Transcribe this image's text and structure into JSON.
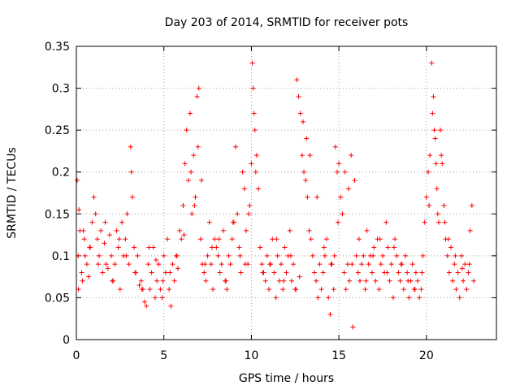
{
  "chart_data": {
    "type": "scatter",
    "title": "Day 203 of 2014, SRMTID for receiver pots",
    "xlabel": "GPS time / hours",
    "ylabel": "SRMTID / TECUs",
    "xlim": [
      0,
      24
    ],
    "ylim": [
      0,
      0.35
    ],
    "xticks": [
      0,
      5,
      10,
      15,
      20
    ],
    "yticks": [
      0,
      0.05,
      0.1,
      0.15,
      0.2,
      0.25,
      0.3,
      0.35
    ],
    "xtick_labels": [
      "0",
      "5",
      "10",
      "15",
      "20"
    ],
    "ytick_labels": [
      "0",
      "0.05",
      "0.1",
      "0.15",
      "0.2",
      "0.25",
      "0.3",
      "0.35"
    ],
    "grid": true,
    "marker": "+",
    "color": "#ff0000",
    "series": [
      {
        "name": "SRMTID",
        "x": [
          0.05,
          0.1,
          0.15,
          0.2,
          0.3,
          0.35,
          0.45,
          0.5,
          0.6,
          0.7,
          0.8,
          0.9,
          1.0,
          1.1,
          1.2,
          1.3,
          1.4,
          1.5,
          1.6,
          1.7,
          1.8,
          1.9,
          2.0,
          2.1,
          2.2,
          2.3,
          2.4,
          2.5,
          2.6,
          2.7,
          2.8,
          2.9,
          3.0,
          3.1,
          3.15,
          3.2,
          3.3,
          3.4,
          3.5,
          3.6,
          3.7,
          3.8,
          3.9,
          4.0,
          4.1,
          4.2,
          4.3,
          4.4,
          4.5,
          4.6,
          4.7,
          4.8,
          4.9,
          5.0,
          5.1,
          5.2,
          5.3,
          5.4,
          5.5,
          5.6,
          5.7,
          5.8,
          5.9,
          6.0,
          6.1,
          6.2,
          6.3,
          6.4,
          6.5,
          6.6,
          6.7,
          6.8,
          6.9,
          7.0,
          7.1,
          7.2,
          7.3,
          7.4,
          7.5,
          7.6,
          7.7,
          7.8,
          7.9,
          8.0,
          8.1,
          8.2,
          8.3,
          8.4,
          8.5,
          8.6,
          8.7,
          8.8,
          8.9,
          9.0,
          9.1,
          9.2,
          9.3,
          9.4,
          9.5,
          9.6,
          9.7,
          9.8,
          9.9,
          10.0,
          10.05,
          10.1,
          10.15,
          10.2,
          10.3,
          10.4,
          10.5,
          10.6,
          10.7,
          10.8,
          10.9,
          11.0,
          11.1,
          11.2,
          11.3,
          11.4,
          11.5,
          11.6,
          11.7,
          11.8,
          11.9,
          12.0,
          12.1,
          12.2,
          12.3,
          12.4,
          12.5,
          12.6,
          12.7,
          12.8,
          12.9,
          13.0,
          13.1,
          13.2,
          13.3,
          13.4,
          13.5,
          13.6,
          13.7,
          13.8,
          13.9,
          14.0,
          14.1,
          14.2,
          14.3,
          14.4,
          14.5,
          14.6,
          14.7,
          14.8,
          14.9,
          15.0,
          15.1,
          15.2,
          15.3,
          15.4,
          15.5,
          15.6,
          15.7,
          15.8,
          15.9,
          16.0,
          16.1,
          16.2,
          16.3,
          16.4,
          16.5,
          16.6,
          16.7,
          16.8,
          16.9,
          17.0,
          17.1,
          17.2,
          17.3,
          17.4,
          17.5,
          17.6,
          17.7,
          17.8,
          17.9,
          18.0,
          18.1,
          18.2,
          18.3,
          18.4,
          18.5,
          18.6,
          18.7,
          18.8,
          18.9,
          19.0,
          19.1,
          19.2,
          19.3,
          19.4,
          19.5,
          19.6,
          19.7,
          19.8,
          19.9,
          20.0,
          20.1,
          20.2,
          20.3,
          20.4,
          20.45,
          20.5,
          20.55,
          20.6,
          20.7,
          20.8,
          20.9,
          21.0,
          21.1,
          21.2,
          21.3,
          21.4,
          21.5,
          21.6,
          21.7,
          21.8,
          21.9,
          22.0,
          22.1,
          22.2,
          22.3,
          22.4,
          22.5,
          22.6,
          22.7,
          0.12,
          0.4,
          0.75,
          1.25,
          1.65,
          2.05,
          2.45,
          2.85,
          3.35,
          3.75,
          4.15,
          4.55,
          4.95,
          5.35,
          5.75,
          6.15,
          6.55,
          6.75,
          6.95,
          7.15,
          7.35,
          7.75,
          8.15,
          8.55,
          8.95,
          9.35,
          9.65,
          9.85,
          10.25,
          10.65,
          11.05,
          11.45,
          11.85,
          12.25,
          12.55,
          12.75,
          12.95,
          13.15,
          13.35,
          13.75,
          14.15,
          14.55,
          14.75,
          14.95,
          15.35,
          15.55,
          15.75,
          16.15,
          16.55,
          16.95,
          17.35,
          17.75,
          18.15,
          18.55,
          18.95,
          19.35,
          19.75,
          20.15,
          20.35,
          20.65,
          20.85,
          21.05,
          21.25,
          21.65,
          22.05,
          22.45
        ],
        "y": [
          0.19,
          0.1,
          0.155,
          0.13,
          0.08,
          0.07,
          0.12,
          0.1,
          0.09,
          0.075,
          0.11,
          0.14,
          0.17,
          0.15,
          0.12,
          0.1,
          0.13,
          0.08,
          0.115,
          0.09,
          0.085,
          0.125,
          0.1,
          0.07,
          0.09,
          0.13,
          0.11,
          0.06,
          0.14,
          0.1,
          0.12,
          0.15,
          0.09,
          0.23,
          0.2,
          0.17,
          0.11,
          0.08,
          0.1,
          0.065,
          0.07,
          0.06,
          0.045,
          0.04,
          0.09,
          0.06,
          0.08,
          0.11,
          0.05,
          0.07,
          0.09,
          0.06,
          0.05,
          0.1,
          0.08,
          0.12,
          0.06,
          0.04,
          0.09,
          0.07,
          0.1,
          0.085,
          0.13,
          0.12,
          0.16,
          0.21,
          0.25,
          0.19,
          0.27,
          0.15,
          0.22,
          0.17,
          0.29,
          0.3,
          0.12,
          0.09,
          0.08,
          0.07,
          0.1,
          0.14,
          0.09,
          0.06,
          0.12,
          0.11,
          0.1,
          0.08,
          0.09,
          0.13,
          0.07,
          0.06,
          0.1,
          0.09,
          0.12,
          0.14,
          0.23,
          0.15,
          0.11,
          0.08,
          0.2,
          0.18,
          0.13,
          0.09,
          0.16,
          0.21,
          0.33,
          0.3,
          0.27,
          0.25,
          0.22,
          0.18,
          0.11,
          0.09,
          0.08,
          0.07,
          0.1,
          0.06,
          0.09,
          0.12,
          0.08,
          0.05,
          0.1,
          0.07,
          0.09,
          0.06,
          0.11,
          0.08,
          0.1,
          0.13,
          0.07,
          0.09,
          0.06,
          0.31,
          0.29,
          0.27,
          0.22,
          0.2,
          0.19,
          0.17,
          0.13,
          0.12,
          0.1,
          0.08,
          0.07,
          0.05,
          0.09,
          0.06,
          0.08,
          0.1,
          0.12,
          0.05,
          0.03,
          0.09,
          0.06,
          0.23,
          0.2,
          0.21,
          0.17,
          0.15,
          0.08,
          0.06,
          0.09,
          0.07,
          0.22,
          0.015,
          0.19,
          0.1,
          0.08,
          0.07,
          0.09,
          0.1,
          0.06,
          0.13,
          0.09,
          0.1,
          0.08,
          0.11,
          0.07,
          0.12,
          0.06,
          0.09,
          0.1,
          0.08,
          0.14,
          0.11,
          0.07,
          0.09,
          0.05,
          0.12,
          0.1,
          0.08,
          0.07,
          0.09,
          0.06,
          0.1,
          0.08,
          0.05,
          0.07,
          0.09,
          0.06,
          0.08,
          0.07,
          0.05,
          0.06,
          0.1,
          0.14,
          0.17,
          0.2,
          0.22,
          0.33,
          0.29,
          0.25,
          0.24,
          0.21,
          0.18,
          0.14,
          0.25,
          0.21,
          0.16,
          0.12,
          0.1,
          0.08,
          0.11,
          0.07,
          0.09,
          0.06,
          0.08,
          0.05,
          0.1,
          0.07,
          0.09,
          0.06,
          0.08,
          0.13,
          0.16,
          0.07,
          0.06,
          0.13,
          0.11,
          0.09,
          0.14,
          0.07,
          0.12,
          0.1,
          0.08,
          0.06,
          0.11,
          0.095,
          0.07,
          0.08,
          0.1,
          0.125,
          0.2,
          0.16,
          0.23,
          0.19,
          0.09,
          0.11,
          0.12,
          0.07,
          0.14,
          0.1,
          0.09,
          0.15,
          0.2,
          0.08,
          0.09,
          0.12,
          0.07,
          0.1,
          0.06,
          0.075,
          0.26,
          0.24,
          0.22,
          0.17,
          0.11,
          0.09,
          0.1,
          0.14,
          0.2,
          0.18,
          0.09,
          0.12,
          0.07,
          0.1,
          0.12,
          0.08,
          0.11,
          0.09,
          0.07,
          0.06,
          0.08,
          0.16,
          0.27,
          0.15,
          0.22,
          0.14,
          0.12,
          0.1,
          0.085,
          0.09
        ]
      }
    ]
  }
}
